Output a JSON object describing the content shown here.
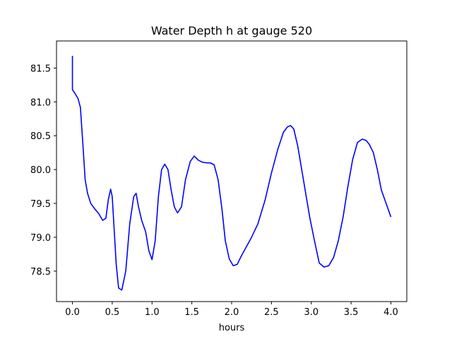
{
  "chart_data": {
    "type": "line",
    "title": "Water Depth h at gauge 520",
    "xlabel": "hours",
    "ylabel": "",
    "xlim": [
      -0.2,
      4.2
    ],
    "ylim": [
      78.05,
      81.9
    ],
    "xticks": [
      0.0,
      0.5,
      1.0,
      1.5,
      2.0,
      2.5,
      3.0,
      3.5,
      4.0
    ],
    "xtick_labels": [
      "0.0",
      "0.5",
      "1.0",
      "1.5",
      "2.0",
      "2.5",
      "3.0",
      "3.5",
      "4.0"
    ],
    "yticks": [
      78.5,
      79.0,
      79.5,
      80.0,
      80.5,
      81.0,
      81.5
    ],
    "ytick_labels": [
      "78.5",
      "79.0",
      "79.5",
      "80.0",
      "80.5",
      "81.0",
      "81.5"
    ],
    "grid": false,
    "legend": "none",
    "series": [
      {
        "color": "#0000ff",
        "x": [
          0.0,
          0.0,
          0.0,
          0.03,
          0.07,
          0.1,
          0.13,
          0.16,
          0.19,
          0.23,
          0.28,
          0.33,
          0.38,
          0.42,
          0.45,
          0.48,
          0.5,
          0.52,
          0.55,
          0.58,
          0.62,
          0.67,
          0.72,
          0.77,
          0.8,
          0.83,
          0.87,
          0.92,
          0.96,
          1.0,
          1.04,
          1.08,
          1.12,
          1.16,
          1.2,
          1.24,
          1.28,
          1.32,
          1.37,
          1.42,
          1.48,
          1.53,
          1.58,
          1.63,
          1.68,
          1.73,
          1.78,
          1.83,
          1.88,
          1.92,
          1.97,
          2.02,
          2.07,
          2.12,
          2.18,
          2.25,
          2.33,
          2.42,
          2.5,
          2.58,
          2.65,
          2.7,
          2.74,
          2.78,
          2.83,
          2.88,
          2.93,
          2.98,
          3.04,
          3.1,
          3.16,
          3.22,
          3.28,
          3.34,
          3.4,
          3.46,
          3.52,
          3.58,
          3.64,
          3.69,
          3.73,
          3.78,
          3.83,
          3.88,
          3.94,
          4.0
        ],
        "y": [
          81.68,
          81.5,
          81.18,
          81.13,
          81.05,
          80.92,
          80.4,
          79.85,
          79.65,
          79.5,
          79.42,
          79.35,
          79.25,
          79.28,
          79.55,
          79.71,
          79.6,
          79.2,
          78.6,
          78.25,
          78.22,
          78.5,
          79.2,
          79.6,
          79.65,
          79.45,
          79.25,
          79.08,
          78.8,
          78.67,
          78.95,
          79.6,
          80.0,
          80.08,
          80.0,
          79.7,
          79.45,
          79.36,
          79.45,
          79.85,
          80.12,
          80.2,
          80.14,
          80.11,
          80.1,
          80.1,
          80.07,
          79.85,
          79.4,
          78.95,
          78.68,
          78.58,
          78.6,
          78.72,
          78.85,
          79.0,
          79.2,
          79.55,
          79.95,
          80.3,
          80.55,
          80.63,
          80.65,
          80.6,
          80.35,
          80.0,
          79.65,
          79.3,
          78.95,
          78.62,
          78.56,
          78.58,
          78.7,
          78.95,
          79.3,
          79.75,
          80.15,
          80.4,
          80.45,
          80.43,
          80.37,
          80.25,
          80.0,
          79.7,
          79.5,
          79.3
        ]
      }
    ]
  }
}
